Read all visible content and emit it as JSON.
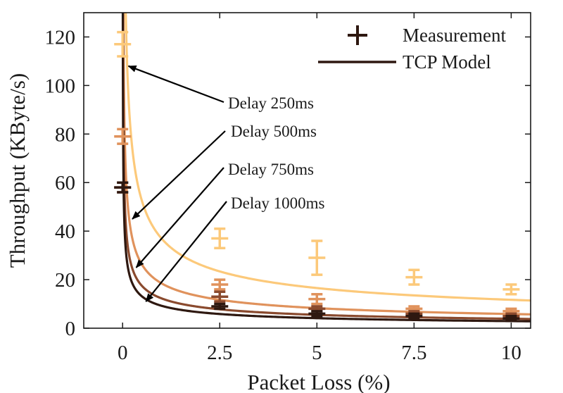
{
  "chart_data": {
    "type": "line",
    "xlabel": "Packet Loss (%)",
    "ylabel": "Throughput (KByte/s)",
    "xlim": [
      -1.0,
      10.5
    ],
    "ylim": [
      0,
      130
    ],
    "x_ticks": [
      0,
      2.5,
      5,
      7.5,
      10
    ],
    "x_tick_labels": [
      "0",
      "2.5",
      "5",
      "7.5",
      "10"
    ],
    "y_ticks": [
      0,
      20,
      40,
      60,
      80,
      100,
      120
    ],
    "y_tick_labels": [
      "0",
      "20",
      "40",
      "60",
      "80",
      "100",
      "120"
    ],
    "legend": {
      "placement": "top-right",
      "entries": [
        {
          "label": "Measurement",
          "marker": "plus",
          "color": "#2e1810"
        },
        {
          "label": "TCP Model",
          "marker": "line",
          "color": "#2e1810"
        }
      ]
    },
    "series": [
      {
        "delay_label": "Delay 250ms",
        "color": "#fcc97a",
        "measurements": [
          {
            "x": 0,
            "y": 117,
            "err": 5
          },
          {
            "x": 2.5,
            "y": 37,
            "err": 4
          },
          {
            "x": 5,
            "y": 29,
            "err": 7
          },
          {
            "x": 7.5,
            "y": 21,
            "err": 3
          },
          {
            "x": 10,
            "y": 16,
            "err": 2
          }
        ]
      },
      {
        "delay_label": "Delay 500ms",
        "color": "#e0925c",
        "measurements": [
          {
            "x": 0,
            "y": 79,
            "err": 3
          },
          {
            "x": 2.5,
            "y": 18,
            "err": 2
          },
          {
            "x": 5,
            "y": 12,
            "err": 2
          },
          {
            "x": 7.5,
            "y": 8,
            "err": 1
          },
          {
            "x": 10,
            "y": 7,
            "err": 1
          }
        ]
      },
      {
        "delay_label": "Delay 750ms",
        "color": "#8a4a2e",
        "measurements": [
          {
            "x": 0,
            "y": 58,
            "err": 2
          },
          {
            "x": 2.5,
            "y": 13,
            "err": 2
          },
          {
            "x": 5,
            "y": 8,
            "err": 1
          },
          {
            "x": 7.5,
            "y": 6,
            "err": 1
          },
          {
            "x": 10,
            "y": 5,
            "err": 1
          }
        ]
      },
      {
        "delay_label": "Delay 1000ms",
        "color": "#2e1810",
        "measurements": [
          {
            "x": 0,
            "y": 58,
            "err": 2
          },
          {
            "x": 2.5,
            "y": 9,
            "err": 1
          },
          {
            "x": 5,
            "y": 6,
            "err": 1
          },
          {
            "x": 7.5,
            "y": 5,
            "err": 1
          },
          {
            "x": 10,
            "y": 4,
            "err": 1
          }
        ]
      }
    ],
    "model_curves": [
      {
        "name": "Delay 250ms",
        "color": "#fcc97a",
        "k": 37
      },
      {
        "name": "Delay 500ms",
        "color": "#e0925c",
        "k": 18.5
      },
      {
        "name": "Delay 750ms",
        "color": "#8a4a2e",
        "k": 12.3
      },
      {
        "name": "Delay 1000ms",
        "color": "#2e1810",
        "k": 9.25
      }
    ],
    "annotations": [
      {
        "text": "Delay 250ms",
        "arrow_to": [
          0.15,
          108
        ]
      },
      {
        "text": "Delay 500ms",
        "arrow_to": [
          0.25,
          45
        ]
      },
      {
        "text": "Delay 750ms",
        "arrow_to": [
          0.35,
          25
        ]
      },
      {
        "text": "Delay 1000ms",
        "arrow_to": [
          0.6,
          11
        ]
      }
    ]
  }
}
